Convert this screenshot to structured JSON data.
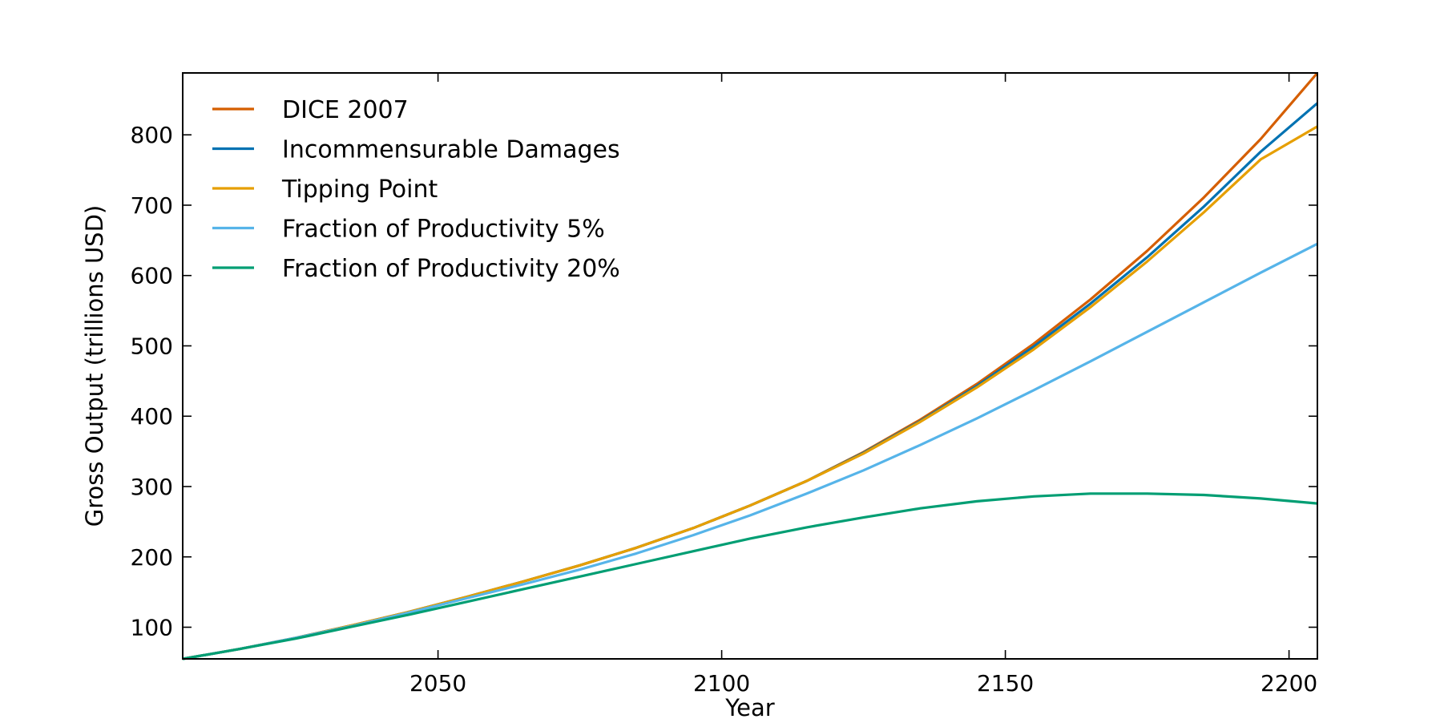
{
  "chart_data": {
    "type": "line",
    "title": "",
    "xlabel": "Year",
    "ylabel": "Gross Output (trillions USD)",
    "xlim": [
      2005,
      2205
    ],
    "ylim": [
      55,
      888
    ],
    "xticks": [
      2050,
      2100,
      2150,
      2200
    ],
    "yticks": [
      100,
      200,
      300,
      400,
      500,
      600,
      700,
      800
    ],
    "legend_position": "top-left",
    "grid": false,
    "x": [
      2005,
      2015,
      2025,
      2035,
      2045,
      2055,
      2065,
      2075,
      2085,
      2095,
      2105,
      2115,
      2125,
      2135,
      2145,
      2155,
      2165,
      2175,
      2185,
      2195,
      2205
    ],
    "series": [
      {
        "name": "DICE 2007",
        "color": "#d55e00",
        "values": [
          55,
          69,
          85,
          103,
          122,
          143,
          165,
          188,
          213,
          241,
          273,
          308,
          349,
          395,
          446,
          503,
          566,
          635,
          711,
          794,
          888
        ]
      },
      {
        "name": "Incommensurable Damages",
        "color": "#0072b2",
        "values": [
          55,
          69,
          85,
          103,
          122,
          143,
          165,
          188,
          213,
          241,
          273,
          308,
          348,
          393,
          443,
          499,
          560,
          626,
          698,
          776,
          845
        ]
      },
      {
        "name": "Tipping Point",
        "color": "#e69f00",
        "values": [
          55,
          69,
          85,
          103,
          122,
          143,
          165,
          188,
          213,
          241,
          273,
          308,
          347,
          392,
          441,
          495,
          555,
          620,
          690,
          765,
          812
        ]
      },
      {
        "name": "Fraction of Productivity 5%",
        "color": "#56b4e9",
        "values": [
          55,
          69,
          85,
          102,
          121,
          141,
          161,
          182,
          205,
          231,
          259,
          290,
          323,
          359,
          397,
          437,
          478,
          520,
          562,
          604,
          645
        ]
      },
      {
        "name": "Fraction of Productivity 20%",
        "color": "#009e73",
        "values": [
          55,
          69,
          84,
          101,
          118,
          136,
          154,
          172,
          190,
          208,
          226,
          242,
          256,
          269,
          279,
          286,
          290,
          290,
          288,
          283,
          276
        ]
      }
    ]
  }
}
